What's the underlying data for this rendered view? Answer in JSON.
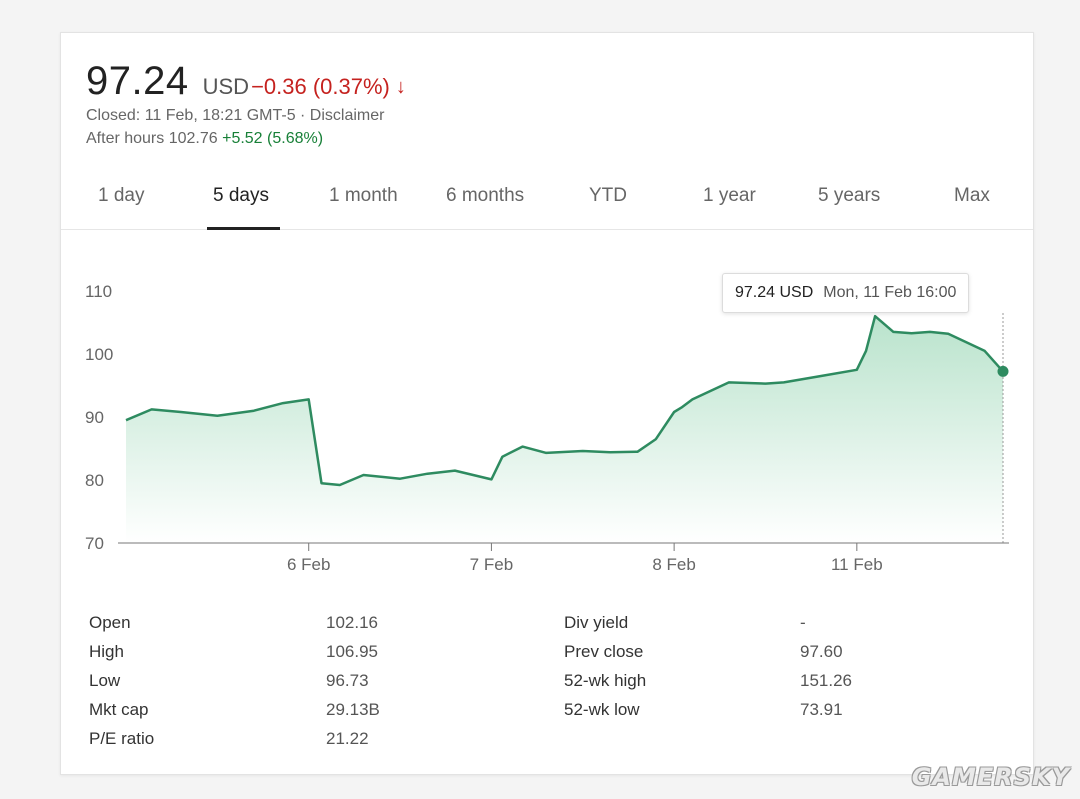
{
  "quote": {
    "price": "97.24",
    "currency": "USD",
    "change": "−0.36 (0.37%)",
    "direction_icon": "arrow-down-icon",
    "closed_text": "Closed: 11 Feb, 18:21 GMT-5 · Disclaimer",
    "after_hours_label": "After hours 102.76",
    "after_hours_change": "+5.52 (5.68%)"
  },
  "tabs": [
    {
      "label": "1 day"
    },
    {
      "label": "5 days",
      "active": true
    },
    {
      "label": "1 month"
    },
    {
      "label": "6 months"
    },
    {
      "label": "YTD"
    },
    {
      "label": "1 year"
    },
    {
      "label": "5 years"
    },
    {
      "label": "Max"
    }
  ],
  "tooltip": {
    "value": "97.24 USD",
    "date": "Mon, 11 Feb 16:00"
  },
  "colors": {
    "line": "#2e8b60",
    "fill_top": "#b9e3cc",
    "fill_bottom": "#ffffff",
    "negative": "#c5221f",
    "positive": "#188038"
  },
  "chart_data": {
    "type": "area",
    "x": [
      0,
      0.14,
      0.3,
      0.5,
      0.7,
      0.86,
      1.0,
      1.07,
      1.17,
      1.3,
      1.5,
      1.65,
      1.8,
      2.0,
      2.06,
      2.17,
      2.3,
      2.5,
      2.65,
      2.8,
      2.9,
      3.0,
      3.04,
      3.1,
      3.3,
      3.5,
      3.6,
      3.8,
      4.0,
      4.05,
      4.1,
      4.2,
      4.3,
      4.4,
      4.5,
      4.7,
      4.8
    ],
    "values": [
      89.5,
      91.2,
      90.8,
      90.2,
      91.0,
      92.2,
      92.8,
      79.5,
      79.2,
      80.8,
      80.2,
      81.0,
      81.5,
      80.1,
      83.7,
      85.3,
      84.3,
      84.6,
      84.4,
      84.5,
      86.5,
      90.8,
      91.5,
      92.8,
      95.5,
      95.3,
      95.5,
      96.5,
      97.5,
      100.5,
      106.0,
      103.5,
      103.3,
      103.5,
      103.2,
      100.5,
      97.24
    ],
    "ylim": [
      70,
      110
    ],
    "yticks": [
      70,
      80,
      90,
      100,
      110
    ],
    "ytick_labels": [
      "70",
      "80",
      "90",
      "100",
      "110"
    ],
    "xtick_positions": [
      1,
      2,
      3,
      4
    ],
    "xtick_labels": [
      "6 Feb",
      "7 Feb",
      "8 Feb",
      "11 Feb"
    ],
    "grid": false,
    "highlight_value": 97.24
  },
  "stats": {
    "left": [
      {
        "label": "Open",
        "value": "102.16"
      },
      {
        "label": "High",
        "value": "106.95"
      },
      {
        "label": "Low",
        "value": "96.73"
      },
      {
        "label": "Mkt cap",
        "value": "29.13B"
      },
      {
        "label": "P/E ratio",
        "value": "21.22"
      }
    ],
    "right": [
      {
        "label": "Div yield",
        "value": "-"
      },
      {
        "label": "Prev close",
        "value": "97.60"
      },
      {
        "label": "52-wk high",
        "value": "151.26"
      },
      {
        "label": "52-wk low",
        "value": "73.91"
      }
    ]
  },
  "watermark": "GAMERSKY"
}
